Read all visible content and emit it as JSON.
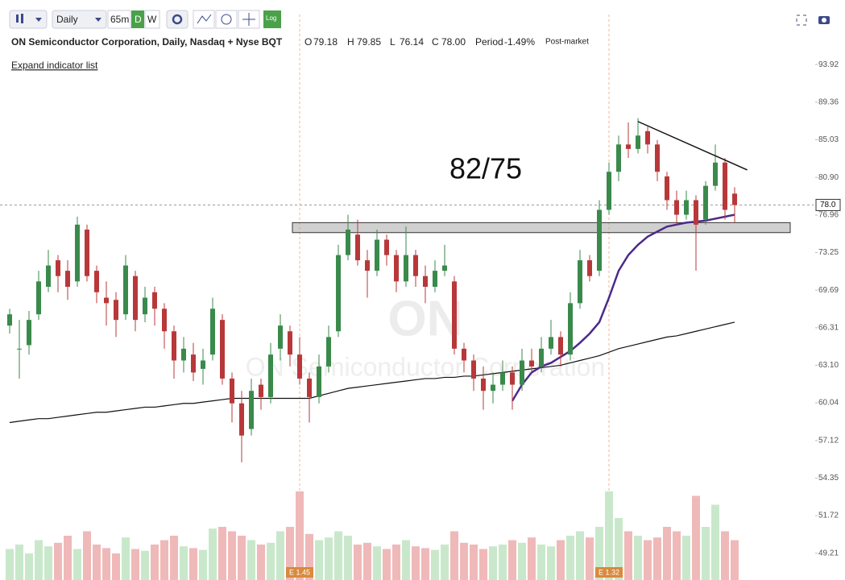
{
  "toolbar": {
    "interval": "Daily",
    "minutes": "65m",
    "day": "D",
    "week": "W",
    "log": "Log"
  },
  "header": {
    "title": "ON Semiconductor Corporation, Daily, Nasdaq + Nyse BQT",
    "ohlc": [
      {
        "label": "O",
        "value": "79.18"
      },
      {
        "label": "H",
        "value": "79.85"
      },
      {
        "label": "L",
        "value": "76.14"
      },
      {
        "label": "C",
        "value": "78.00"
      },
      {
        "label": "Period",
        "value": "-1.49%"
      }
    ],
    "session": "Post-market",
    "expand": "Expand indicator list"
  },
  "chart_data": {
    "type": "candlestick",
    "log": true,
    "watermark": "ON",
    "watermark_name": "ON Semiconductor Corporation",
    "up_color": "#3a8a4c",
    "down_color": "#b8383a",
    "volume_up_color": "#c9e8cb",
    "volume_down_color": "#f0b9b9",
    "ylim": [
      47.5,
      95.75
    ],
    "yticks": [
      93.92,
      89.36,
      85.03,
      {
        "value": 80.9,
        "label": "80.90"
      },
      76.96,
      73.25,
      69.69,
      66.31,
      {
        "value": 63.1,
        "label": "63.10"
      },
      60.04,
      57.12,
      54.35,
      51.72,
      49.21
    ],
    "last_price": {
      "value": 78,
      "label": "78.0"
    },
    "open": [
      66.5,
      64.5,
      64.8,
      67.5,
      70.0,
      72.5,
      71.5,
      70.5,
      75.5,
      71.5,
      69.0,
      68.8,
      67.5,
      71.0,
      67.5,
      69.5,
      68.0,
      66.0,
      63.5,
      64.0,
      62.8,
      64.0,
      67.0,
      62.0,
      60.0,
      58.0,
      61.5,
      60.5,
      64.5,
      66.0,
      64.0,
      62.0,
      60.5,
      63.0,
      66.0,
      73.0,
      75.0,
      72.5,
      71.5,
      74.5,
      73.0,
      70.5,
      73.0,
      71.0,
      70.0,
      71.5,
      70.5,
      64.5,
      63.5,
      62.0,
      61.0,
      61.5,
      62.5,
      61.5,
      63.5,
      63.0,
      64.5,
      65.5,
      64.0,
      68.5,
      72.5,
      71.5,
      77.5,
      81.5,
      84.5,
      84.0,
      86.0,
      84.5,
      81.0,
      78.5,
      77.0,
      78.5,
      76.5,
      80.0,
      82.5,
      79.18
    ],
    "high": [
      68.0,
      67.0,
      67.8,
      71.5,
      73.5,
      73.0,
      72.5,
      76.8,
      76.0,
      72.0,
      70.5,
      69.5,
      73.0,
      71.5,
      70.0,
      70.0,
      68.5,
      66.5,
      65.5,
      65.0,
      64.5,
      69.0,
      67.5,
      62.5,
      61.0,
      62.0,
      62.0,
      65.0,
      67.5,
      66.5,
      65.5,
      62.5,
      64.0,
      66.5,
      74.0,
      77.0,
      76.5,
      73.5,
      75.5,
      75.0,
      73.5,
      75.8,
      73.5,
      72.0,
      72.5,
      74.0,
      71.0,
      65.0,
      64.0,
      63.0,
      62.5,
      63.5,
      63.0,
      64.5,
      64.5,
      65.5,
      67.0,
      66.0,
      69.5,
      73.5,
      73.0,
      78.5,
      82.5,
      85.5,
      87.0,
      87.5,
      86.5,
      85.0,
      81.5,
      79.5,
      79.5,
      79.0,
      80.5,
      84.5,
      83.0,
      79.85
    ],
    "low": [
      65.8,
      62.0,
      64.0,
      67.0,
      69.5,
      69.5,
      68.8,
      70.0,
      70.5,
      68.5,
      66.5,
      65.5,
      67.0,
      66.0,
      66.8,
      66.5,
      64.5,
      62.0,
      62.5,
      61.8,
      61.5,
      63.5,
      61.5,
      58.5,
      55.5,
      57.5,
      59.5,
      60.0,
      63.5,
      63.0,
      61.5,
      58.5,
      60.0,
      62.5,
      65.5,
      72.5,
      72.0,
      69.0,
      71.0,
      72.0,
      69.5,
      70.0,
      70.0,
      68.5,
      69.5,
      71.0,
      64.0,
      62.5,
      61.0,
      59.5,
      60.0,
      61.0,
      59.5,
      61.0,
      62.5,
      62.5,
      64.0,
      63.0,
      63.5,
      68.0,
      70.5,
      71.0,
      77.0,
      80.5,
      83.0,
      83.5,
      83.5,
      80.5,
      77.5,
      76.0,
      76.5,
      71.5,
      76.0,
      79.5,
      76.5,
      76.14
    ],
    "close": [
      67.5,
      64.5,
      67.0,
      70.5,
      72.0,
      71.0,
      70.0,
      76.0,
      71.0,
      69.5,
      68.5,
      67.0,
      72.0,
      67.0,
      69.0,
      68.0,
      66.0,
      63.5,
      64.5,
      62.5,
      63.5,
      68.0,
      62.0,
      60.0,
      57.5,
      61.0,
      60.5,
      64.0,
      66.5,
      64.0,
      62.0,
      60.5,
      63.0,
      65.5,
      73.0,
      75.5,
      72.5,
      71.5,
      74.5,
      73.0,
      70.5,
      73.0,
      71.0,
      70.0,
      71.5,
      72.0,
      64.5,
      63.5,
      62.0,
      61.0,
      61.5,
      62.5,
      61.5,
      63.5,
      63.0,
      64.5,
      65.5,
      64.0,
      68.5,
      72.5,
      71.0,
      77.5,
      81.5,
      84.5,
      84.0,
      85.5,
      84.5,
      81.5,
      78.5,
      77.0,
      78.5,
      76.0,
      80.0,
      82.5,
      77.5,
      78.0
    ],
    "volume": [
      35,
      40,
      30,
      45,
      38,
      42,
      50,
      35,
      55,
      40,
      36,
      30,
      48,
      35,
      33,
      40,
      45,
      50,
      38,
      36,
      34,
      58,
      60,
      55,
      50,
      45,
      40,
      42,
      55,
      60,
      100,
      52,
      45,
      48,
      55,
      50,
      40,
      42,
      38,
      35,
      40,
      45,
      38,
      36,
      34,
      40,
      55,
      42,
      40,
      35,
      38,
      40,
      45,
      42,
      48,
      40,
      38,
      45,
      50,
      55,
      48,
      60,
      100,
      70,
      55,
      50,
      45,
      48,
      60,
      55,
      50,
      95,
      60,
      85,
      55,
      45
    ],
    "series": [
      {
        "color": "#111111",
        "values": [
          58.5,
          58.6,
          58.7,
          58.8,
          58.8,
          58.9,
          59.0,
          59.1,
          59.2,
          59.3,
          59.3,
          59.4,
          59.5,
          59.6,
          59.7,
          59.7,
          59.8,
          59.9,
          60.0,
          60.0,
          60.1,
          60.2,
          60.3,
          60.4,
          60.4,
          60.4,
          60.4,
          60.4,
          60.4,
          60.4,
          60.4,
          60.4,
          60.6,
          60.8,
          61.0,
          61.2,
          61.3,
          61.4,
          61.5,
          61.6,
          61.7,
          61.8,
          61.9,
          62.0,
          62.0,
          62.1,
          62.1,
          62.2,
          62.2,
          62.3,
          62.4,
          62.5,
          62.6,
          62.7,
          62.8,
          62.9,
          63.0,
          63.1,
          63.3,
          63.5,
          63.7,
          63.9,
          64.2,
          64.5,
          64.7,
          64.9,
          65.1,
          65.3,
          65.5,
          65.6,
          65.8,
          66.0,
          66.2,
          66.4,
          66.6,
          66.8
        ]
      },
      {
        "color": "#4b2a8a",
        "values": [
          null,
          null,
          null,
          null,
          null,
          null,
          null,
          null,
          null,
          null,
          null,
          null,
          null,
          null,
          null,
          null,
          null,
          null,
          null,
          null,
          null,
          null,
          null,
          null,
          null,
          null,
          null,
          null,
          null,
          null,
          null,
          null,
          null,
          null,
          null,
          null,
          null,
          null,
          null,
          null,
          null,
          null,
          null,
          null,
          null,
          null,
          null,
          null,
          null,
          null,
          null,
          null,
          60.2,
          61.5,
          62.5,
          63.0,
          63.3,
          63.8,
          64.3,
          65.0,
          65.8,
          66.8,
          69.0,
          71.5,
          73.0,
          74.0,
          74.8,
          75.3,
          75.8,
          76.0,
          76.2,
          76.3,
          76.4,
          76.6,
          76.8,
          77.0
        ]
      }
    ],
    "zone": {
      "low": 75.2,
      "high": 76.2
    },
    "trendline": [
      [
        65,
        87.1
      ],
      [
        76.3,
        81.7
      ]
    ],
    "annotation": "82/75",
    "events": [
      {
        "candle": 30,
        "label": "E 1.45"
      },
      {
        "candle": 62,
        "label": "E 1.32"
      }
    ]
  }
}
